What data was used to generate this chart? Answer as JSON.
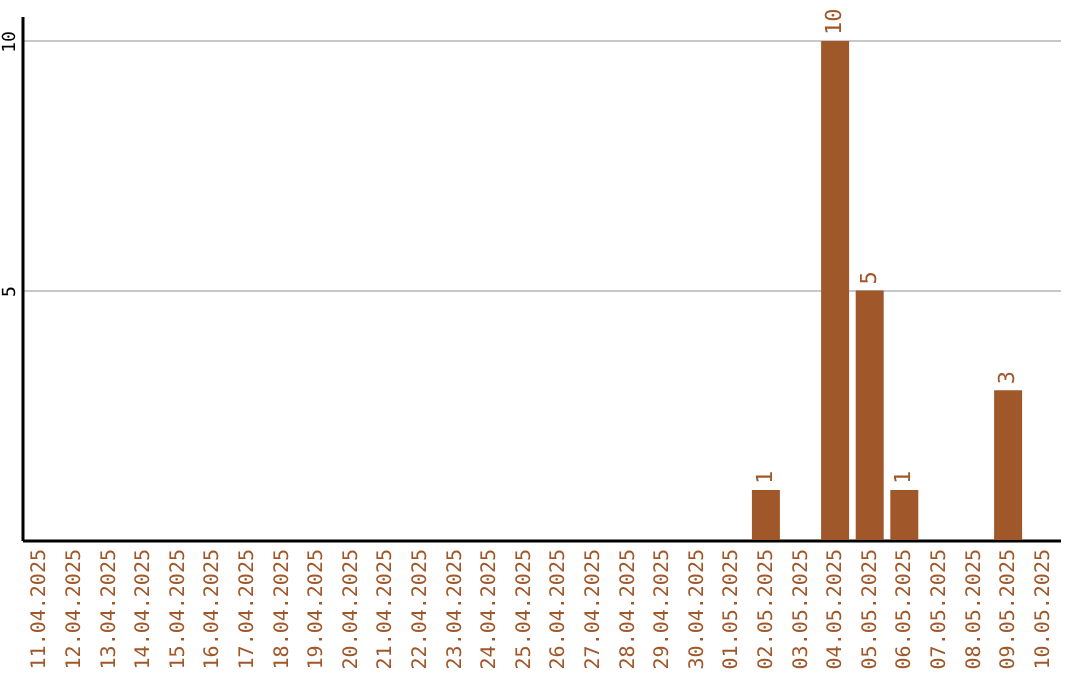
{
  "chart_data": {
    "type": "bar",
    "categories": [
      "11.04.2025",
      "12.04.2025",
      "13.04.2025",
      "14.04.2025",
      "15.04.2025",
      "16.04.2025",
      "17.04.2025",
      "18.04.2025",
      "19.04.2025",
      "20.04.2025",
      "21.04.2025",
      "22.04.2025",
      "23.04.2025",
      "24.04.2025",
      "25.04.2025",
      "26.04.2025",
      "27.04.2025",
      "28.04.2025",
      "29.04.2025",
      "30.04.2025",
      "01.05.2025",
      "02.05.2025",
      "03.05.2025",
      "04.05.2025",
      "05.05.2025",
      "06.05.2025",
      "07.05.2025",
      "08.05.2025",
      "09.05.2025",
      "10.05.2025"
    ],
    "values": [
      0,
      0,
      0,
      0,
      0,
      0,
      0,
      0,
      0,
      0,
      0,
      0,
      0,
      0,
      0,
      0,
      0,
      0,
      0,
      0,
      0,
      1,
      0,
      10,
      5,
      1,
      0,
      0,
      3,
      0
    ],
    "value_labels": [
      null,
      null,
      null,
      null,
      null,
      null,
      null,
      null,
      null,
      null,
      null,
      null,
      null,
      null,
      null,
      null,
      null,
      null,
      null,
      null,
      null,
      "1",
      null,
      "10",
      "5",
      "1",
      null,
      null,
      "3",
      null
    ],
    "color": "#a0582a",
    "ylim": [
      0,
      10.5
    ],
    "yticks": [
      5,
      10
    ],
    "grid": "y"
  }
}
